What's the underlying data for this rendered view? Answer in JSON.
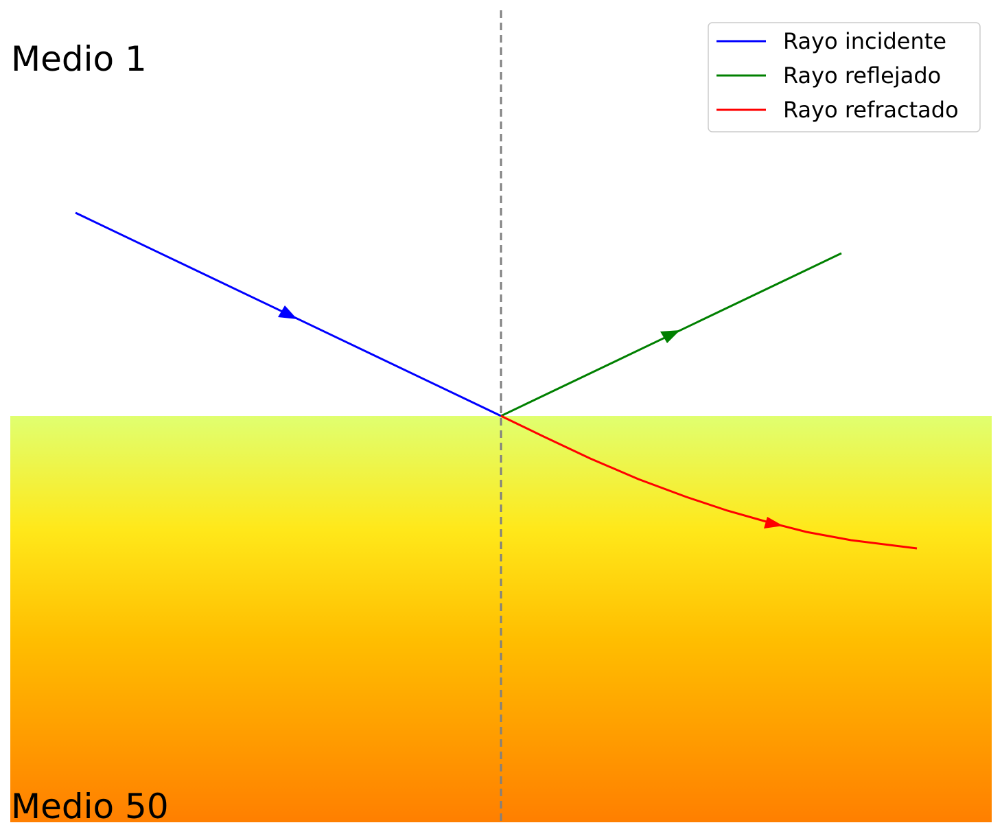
{
  "labels": {
    "upper_medium": "Medio 1",
    "lower_medium": "Medio 50"
  },
  "legend": {
    "placement": "top-right",
    "entries": [
      {
        "label": "Rayo incidente",
        "color": "#0000ff"
      },
      {
        "label": "Rayo reflejado",
        "color": "#008000"
      },
      {
        "label": "Rayo refractado",
        "color": "#ff0000"
      }
    ]
  },
  "colors": {
    "normal_line": "#808080",
    "gradient_top": "#e0ff70",
    "gradient_mid": "#ffe81a",
    "gradient_low": "#ffbe00",
    "gradient_bottom": "#ff7f00"
  }
}
